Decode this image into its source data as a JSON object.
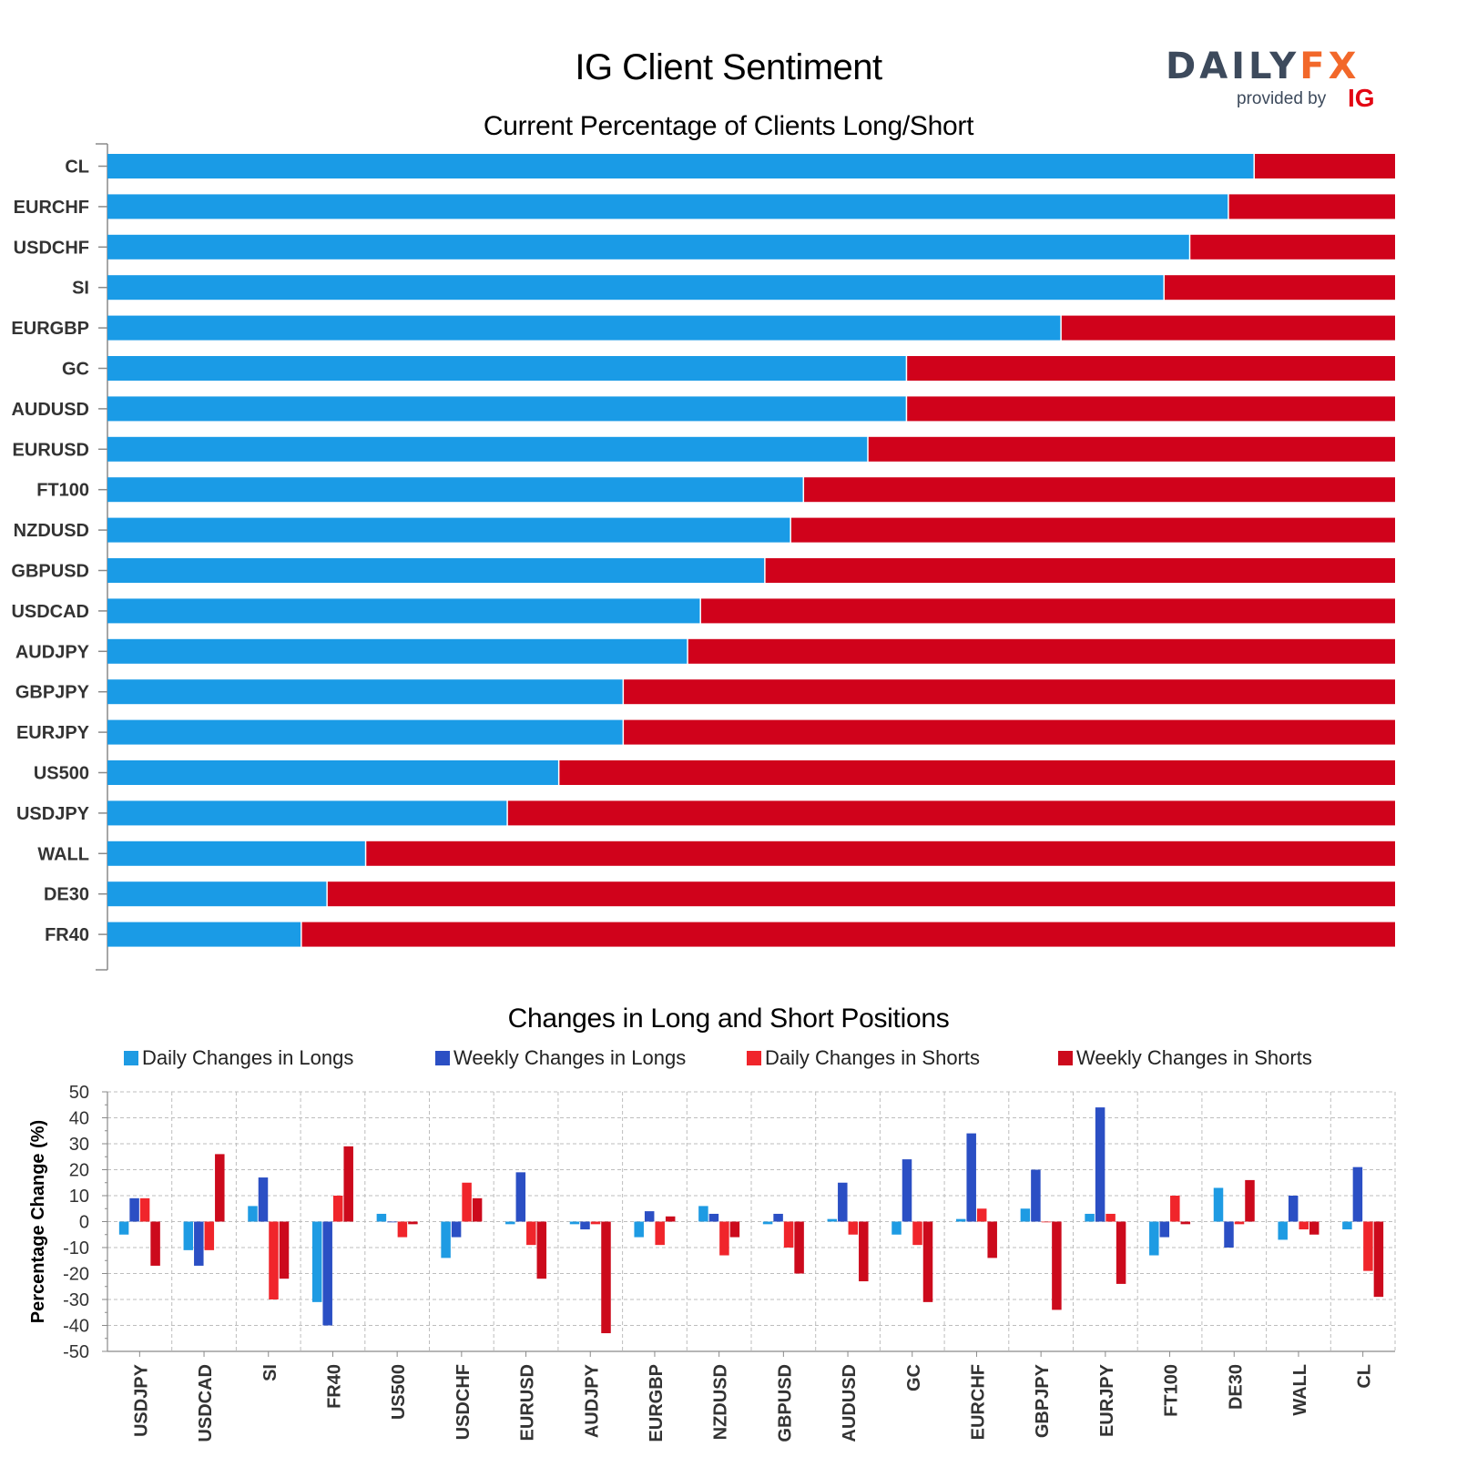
{
  "header": {
    "title": "IG Client Sentiment",
    "subtitle": "Current Percentage of Clients Long/Short",
    "logo_word_1": "DAILY",
    "logo_word_2": "FX",
    "logo_provided": "provided by",
    "logo_ig": "IG"
  },
  "colors": {
    "long": "#1a9be6",
    "short": "#d0021b",
    "daily_longs": "#1e9be3",
    "weekly_longs": "#2b4fc4",
    "daily_shorts": "#f0252b",
    "weekly_shorts": "#cc0a1c"
  },
  "chart_data": [
    {
      "type": "bar",
      "orientation": "horizontal",
      "stacked": true,
      "title": "Current Percentage of Clients Long/Short",
      "categories": [
        "CL",
        "EURCHF",
        "USDCHF",
        "SI",
        "EURGBP",
        "GC",
        "AUDUSD",
        "EURUSD",
        "FT100",
        "NZDUSD",
        "GBPUSD",
        "USDCAD",
        "AUDJPY",
        "GBPJPY",
        "EURJPY",
        "US500",
        "USDJPY",
        "WALL",
        "DE30",
        "FR40"
      ],
      "series": [
        {
          "values": [
            89,
            87,
            84,
            82,
            74,
            62,
            62,
            59,
            54,
            53,
            51,
            46,
            45,
            40,
            40,
            35,
            31,
            20,
            17,
            15
          ]
        },
        {
          "values": [
            11,
            13,
            16,
            18,
            26,
            38,
            38,
            41,
            46,
            47,
            49,
            54,
            55,
            60,
            60,
            65,
            69,
            80,
            83,
            85
          ]
        }
      ],
      "xlim": [
        0,
        100
      ]
    },
    {
      "type": "bar",
      "title": "Changes in Long and Short Positions",
      "ylabel": "Percentage Change (%)",
      "ylim": [
        -50,
        50
      ],
      "yticks": [
        "50",
        "40",
        "30",
        "20",
        "10",
        "0",
        "-10",
        "-20",
        "-30",
        "-40",
        "-50"
      ],
      "grid": true,
      "legend_position": "top",
      "categories": [
        "USDJPY",
        "USDCAD",
        "SI",
        "FR40",
        "US500",
        "USDCHF",
        "EURUSD",
        "AUDJPY",
        "EURGBP",
        "NZDUSD",
        "GBPUSD",
        "AUDUSD",
        "GC",
        "EURCHF",
        "GBPJPY",
        "EURJPY",
        "FT100",
        "DE30",
        "WALL",
        "CL"
      ],
      "series": [
        {
          "name": "Daily Changes in Longs",
          "values": [
            -5,
            -11,
            6,
            -31,
            3,
            -14,
            -1,
            -1,
            -6,
            6,
            -1,
            1,
            -5,
            1,
            5,
            3,
            -13,
            13,
            -7,
            -3
          ]
        },
        {
          "name": "Weekly Changes in Longs",
          "values": [
            9,
            -17,
            17,
            -40,
            0,
            -6,
            19,
            -3,
            4,
            3,
            3,
            15,
            24,
            34,
            20,
            44,
            -6,
            -10,
            10,
            21
          ]
        },
        {
          "name": "Daily Changes in Shorts",
          "values": [
            9,
            -11,
            -30,
            10,
            -6,
            15,
            -9,
            -1,
            -9,
            -13,
            -10,
            -5,
            -9,
            5,
            0,
            3,
            10,
            -1,
            -3,
            -19
          ]
        },
        {
          "name": "Weekly Changes in Shorts",
          "values": [
            -17,
            26,
            -22,
            29,
            -1,
            9,
            -22,
            -43,
            2,
            -6,
            -20,
            -23,
            -31,
            -14,
            -34,
            -24,
            -1,
            16,
            -5,
            -29
          ]
        }
      ]
    }
  ]
}
